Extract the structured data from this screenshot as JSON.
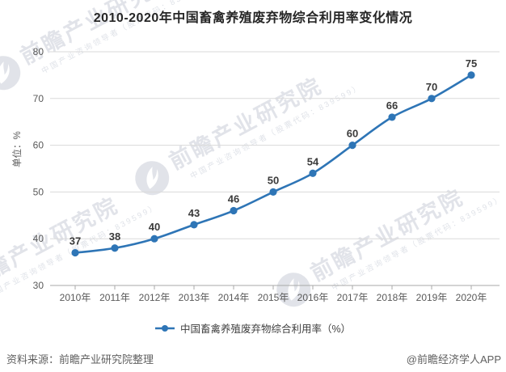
{
  "title": "2010-2020年中国畜禽养殖废弃物综合利用率变化情况",
  "chart_data": {
    "type": "line",
    "categories": [
      "2010年",
      "2011年",
      "2012年",
      "2013年",
      "2014年",
      "2015年",
      "2016年",
      "2017年",
      "2018年",
      "2019年",
      "2020年"
    ],
    "series": [
      {
        "name": "中国畜禽养殖废弃物综合利用率（%）",
        "values": [
          37,
          38,
          40,
          43,
          46,
          50,
          54,
          60,
          66,
          70,
          75
        ]
      }
    ],
    "title": "2010-2020年中国畜禽养殖废弃物综合利用率变化情况",
    "xlabel": "",
    "ylabel": "单位：%",
    "ylim": [
      30,
      80
    ],
    "ytick_step": 10,
    "grid": true,
    "legend_position": "bottom",
    "line_color": "#2e75b6",
    "show_point_labels": true
  },
  "legend": {
    "label": "中国畜禽养殖废弃物综合利用率（%）"
  },
  "watermark": {
    "brand": "前瞻产业研究院",
    "subtext": "中国产业咨询领导者（股票代码：839599）"
  },
  "footer": {
    "source": "资料来源：前瞻产业研究院整理",
    "credit": "@前瞻经济学人APP"
  },
  "colors": {
    "line": "#2e75b6",
    "grid": "#dadada",
    "axis": "#a8a8a8",
    "axis_text": "#595959",
    "point_label": "#3a3a3a",
    "title_text": "#262626"
  }
}
